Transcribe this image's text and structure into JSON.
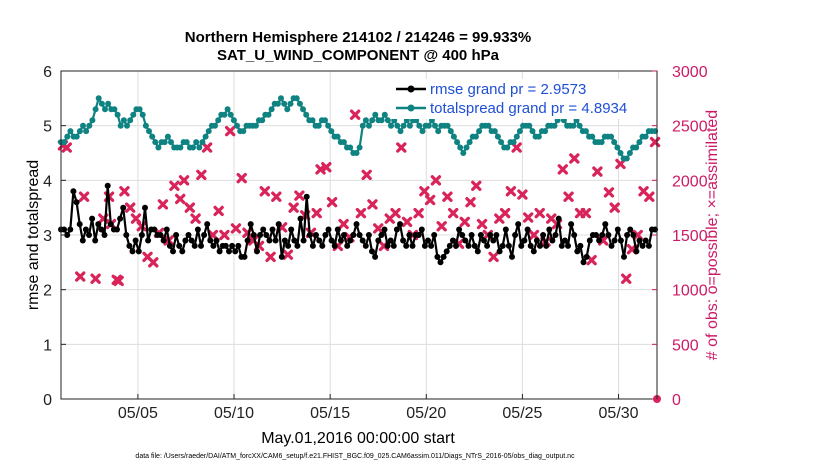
{
  "chart_data": {
    "type": "line",
    "title": "Northern Hemisphere 214102 / 214246 = 99.933%",
    "subtitle": "SAT_U_WIND_COMPONENT @ 400 hPa",
    "xlabel": "May.01,2016 00:00:00 start",
    "ylabel": "rmse and totalspread",
    "ylabel_right": "# of obs: o=possible; ×=assimilated",
    "footnote": "data file: /Users/raeder/DAI/ATM_forcXX/CAM6_setup/f.e21.FHIST_BGC.f09_025.CAM6assim.011/Diags_NTrS_2016-05/obs_diag_output.nc",
    "xlim": [
      1,
      32
    ],
    "x_ticks": [
      5,
      10,
      15,
      20,
      25,
      30
    ],
    "x_tick_labels": [
      "05/05",
      "05/10",
      "05/15",
      "05/20",
      "05/25",
      "05/30"
    ],
    "ylim": [
      0,
      6
    ],
    "y_ticks": [
      "0",
      "1",
      "2",
      "3",
      "4",
      "5",
      "6"
    ],
    "y2lim": [
      0,
      3000
    ],
    "y2_ticks": [
      "0",
      "500",
      "1000",
      "1500",
      "2000",
      "2500",
      "3000"
    ],
    "grid": true,
    "legend_position": "top-right",
    "colors": {
      "rmse": "#000000",
      "totalspread": "#0f8282",
      "obs": "#d9245a",
      "legend_text": "#1f4fd6",
      "right_axis": "#cc1a66"
    },
    "series": [
      {
        "name": "rmse grand pr = 2.9573",
        "values": [
          3.1,
          3.1,
          3.0,
          3.1,
          3.8,
          3.6,
          3.2,
          2.9,
          3.1,
          3.0,
          3.3,
          2.9,
          3.2,
          3.1,
          3.0,
          3.9,
          3.2,
          3.1,
          3.1,
          3.3,
          3.5,
          3.0,
          2.8,
          2.7,
          2.9,
          2.7,
          3.0,
          3.5,
          2.9,
          3.1,
          3.1,
          3.0,
          3.0,
          2.9,
          3.1,
          2.8,
          2.7,
          3.0,
          2.8,
          2.7,
          2.9,
          3.0,
          2.9,
          2.8,
          3.1,
          2.8,
          3.0,
          3.2,
          2.9,
          2.8,
          2.9,
          2.7,
          2.8,
          2.8,
          2.7,
          2.8,
          2.7,
          2.8,
          2.6,
          2.6,
          2.9,
          3.2,
          3.0,
          2.7,
          3.0,
          3.1,
          3.0,
          2.9,
          3.1,
          2.9,
          3.2,
          2.6,
          2.9,
          2.8,
          3.1,
          2.9,
          2.8,
          3.3,
          2.9,
          3.7,
          3.0,
          2.8,
          3.0,
          2.9,
          2.8,
          3.0,
          3.1,
          2.9,
          2.8,
          3.1,
          2.9,
          3.0,
          2.8,
          2.9,
          3.0,
          3.2,
          3.0,
          2.9,
          2.8,
          3.0,
          2.7,
          2.6,
          2.9,
          3.0,
          3.1,
          2.8,
          2.9,
          2.8,
          3.1,
          3.2,
          2.9,
          2.8,
          3.0,
          2.8,
          3.0,
          3.0,
          3.1,
          2.8,
          2.9,
          2.8,
          3.0,
          2.6,
          2.5,
          2.6,
          2.7,
          2.8,
          2.9,
          2.8,
          3.1,
          3.0,
          2.9,
          2.8,
          3.0,
          2.8,
          2.7,
          3.0,
          2.9,
          2.8,
          3.0,
          2.9,
          3.0,
          2.7,
          2.8,
          3.1,
          2.8,
          2.6,
          3.0,
          3.2,
          2.8,
          2.9,
          3.1,
          2.8,
          2.7,
          2.9,
          2.8,
          3.0,
          2.8,
          3.1,
          2.9,
          3.0,
          3.3,
          2.8,
          2.9,
          2.8,
          3.2,
          3.0,
          2.7,
          2.8,
          2.5,
          2.6,
          2.9,
          3.0,
          3.0,
          2.9,
          3.0,
          3.2,
          3.0,
          2.8,
          2.9,
          3.1,
          2.9,
          2.6,
          3.0,
          3.1,
          3.0,
          2.7,
          2.9,
          2.8,
          2.9,
          2.8,
          3.1,
          3.1
        ]
      },
      {
        "name": "totalspread grand pr = 4.8934",
        "values": [
          4.7,
          4.7,
          4.8,
          4.9,
          4.8,
          4.8,
          4.9,
          5.0,
          4.9,
          5.0,
          5.1,
          5.3,
          5.5,
          5.4,
          5.3,
          5.4,
          5.3,
          5.3,
          5.2,
          5.0,
          5.1,
          5.0,
          5.1,
          5.2,
          5.3,
          5.3,
          5.2,
          5.0,
          4.9,
          4.8,
          4.7,
          4.6,
          4.7,
          4.7,
          4.8,
          4.7,
          4.6,
          4.6,
          4.6,
          4.7,
          4.7,
          4.6,
          4.6,
          4.7,
          4.6,
          4.7,
          4.8,
          4.9,
          5.0,
          5.0,
          5.1,
          5.2,
          5.2,
          5.3,
          5.2,
          5.1,
          5.0,
          4.9,
          4.9,
          5.0,
          5.0,
          5.0,
          5.0,
          5.1,
          5.1,
          5.2,
          5.2,
          5.3,
          5.4,
          5.4,
          5.5,
          5.4,
          5.3,
          5.4,
          5.5,
          5.5,
          5.4,
          5.3,
          5.2,
          5.1,
          5.1,
          5.0,
          5.0,
          5.1,
          5.1,
          5.0,
          4.9,
          4.8,
          4.8,
          4.7,
          4.7,
          4.6,
          4.6,
          4.5,
          4.5,
          4.6,
          5.0,
          5.1,
          5.0,
          5.1,
          5.2,
          5.1,
          5.1,
          5.2,
          5.1,
          5.0,
          5.1,
          5.0,
          4.9,
          5.0,
          5.1,
          5.0,
          5.1,
          5.1,
          5.0,
          4.9,
          5.0,
          5.0,
          5.1,
          5.0,
          4.9,
          5.0,
          5.0,
          5.0,
          4.9,
          4.8,
          4.7,
          4.6,
          4.5,
          4.6,
          4.7,
          4.8,
          4.8,
          4.9,
          5.0,
          5.0,
          5.0,
          4.9,
          4.9,
          4.8,
          4.7,
          4.6,
          4.6,
          4.7,
          4.7,
          4.8,
          4.9,
          5.0,
          5.0,
          5.0,
          4.9,
          4.8,
          4.8,
          4.9,
          4.9,
          5.0,
          5.0,
          5.0,
          5.1,
          5.2,
          5.1,
          5.0,
          5.0,
          5.0,
          5.1,
          5.0,
          4.9,
          4.9,
          4.8,
          4.8,
          4.7,
          4.7,
          4.7,
          4.8,
          4.8,
          4.8,
          4.7,
          4.6,
          4.5,
          4.4,
          4.4,
          4.5,
          4.6,
          4.6,
          4.7,
          4.8,
          4.8,
          4.9,
          4.9,
          4.9
        ]
      },
      {
        "name": "assimilated",
        "marker": "x",
        "x": [
          1.1,
          1.3,
          2.0,
          2.2,
          2.8,
          3.2,
          3.5,
          3.6,
          3.9,
          4.0,
          4.3,
          4.6,
          4.9,
          5.2,
          5.5,
          5.8,
          6.1,
          6.3,
          6.6,
          6.9,
          7.2,
          7.4,
          7.7,
          8.0,
          8.3,
          8.6,
          8.9,
          9.2,
          9.5,
          9.8,
          10.1,
          10.4,
          10.7,
          11.0,
          11.3,
          11.6,
          11.9,
          12.2,
          12.5,
          12.8,
          13.1,
          13.4,
          13.7,
          14.0,
          14.3,
          14.5,
          14.8,
          15.1,
          15.4,
          15.7,
          16.0,
          16.3,
          16.6,
          16.9,
          17.2,
          17.5,
          17.8,
          18.1,
          18.4,
          18.7,
          19.0,
          19.3,
          19.6,
          19.9,
          20.2,
          20.5,
          20.8,
          21.1,
          21.4,
          21.7,
          22.0,
          22.3,
          22.6,
          22.9,
          23.2,
          23.5,
          23.8,
          24.1,
          24.4,
          24.7,
          25.0,
          25.3,
          25.6,
          25.9,
          26.2,
          26.5,
          26.8,
          27.1,
          27.4,
          27.7,
          28.0,
          28.3,
          28.6,
          28.9,
          29.2,
          29.5,
          29.8,
          30.1,
          30.4,
          30.7,
          31.0,
          31.3,
          31.6,
          31.9
        ],
        "y": [
          2320,
          2300,
          1120,
          1850,
          1100,
          1650,
          1850,
          1600,
          1090,
          1080,
          1900,
          1750,
          1650,
          1580,
          1300,
          1250,
          1520,
          1780,
          1450,
          1950,
          1830,
          2000,
          1750,
          1650,
          2050,
          2300,
          1500,
          1720,
          1500,
          2450,
          1560,
          2020,
          1520,
          1450,
          1400,
          1900,
          1300,
          1850,
          1570,
          1320,
          1750,
          1860,
          1680,
          1520,
          1700,
          2100,
          2120,
          1800,
          1400,
          1600,
          1480,
          2600,
          1700,
          2050,
          1780,
          1560,
          1400,
          1650,
          1700,
          2300,
          1620,
          1500,
          1700,
          1900,
          1820,
          2000,
          1580,
          1850,
          1700,
          1420,
          1620,
          1800,
          1950,
          1600,
          1500,
          1300,
          1650,
          1700,
          1900,
          2300,
          1870,
          1660,
          1500,
          1700,
          1440,
          1650,
          1600,
          2100,
          1850,
          2200,
          1700,
          1700,
          1270,
          2080,
          1450,
          1890,
          1750,
          2150,
          1100,
          1370,
          1500,
          1900,
          1850,
          2350
        ]
      }
    ]
  }
}
